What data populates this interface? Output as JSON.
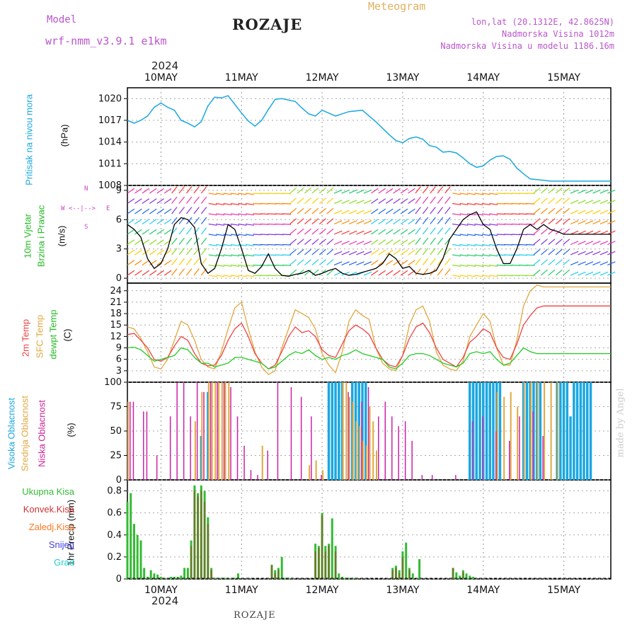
{
  "header": {
    "model_label": "Model",
    "model_name": "wrf-nmm_v3.9.1  e1km",
    "title": "ROZAJE",
    "meteogram": "Meteogram",
    "lonlat": "lon,lat (20.1312E, 42.8625N)",
    "altitude": "Nadmorska Visina 1012m",
    "model_altitude": "Nadmorska Visina u modelu 1186.16m",
    "year_top": "2024",
    "year_bottom": "2024",
    "footer": "ROZAJE",
    "watermark": "made by Angel"
  },
  "colors": {
    "pressure": "#1ba7e0",
    "temp2m": "#ee4444",
    "sfc": "#e0a840",
    "dewpt": "#22cc22",
    "high_cloud": "#1ba7e0",
    "mid_cloud": "#e0a840",
    "low_cloud": "#cc22aa",
    "precip_total": "#33bb33",
    "precip_conv": "#cc3333",
    "frz": "#ff7722",
    "snow": "#4444dd",
    "hail": "#22cccc",
    "wind_legend": "#cc44cc"
  },
  "panel_labels": {
    "pressure": "Pritisak na nivou mora",
    "pressure_unit": "(hPa)",
    "wind1": "10m Vjetar",
    "wind2": "Brzina i Pravac",
    "wind_unit": "(m/s)",
    "temp1": "2m Temp",
    "temp2": "SFC Temp",
    "temp3": "dewpt Temp",
    "temp_unit": "(C)",
    "cloud1": "Visoka Oblacnost",
    "cloud2": "Srednja Oblacnost",
    "cloud3": "Niska Oblacnost",
    "cloud_unit": "(%)",
    "precip_unit": "1hr Precip (mm)",
    "precip_legend": [
      "Ukupna Kisa",
      "Konvek.Kisa",
      "Zaledj.Kisa",
      "Snijeg",
      "Grad"
    ],
    "wind_compass": [
      "W",
      "<--|-->",
      "E",
      "N",
      "S"
    ]
  },
  "chart_data": {
    "type": "line",
    "days": [
      "10MAY",
      "11MAY",
      "12MAY",
      "13MAY",
      "14MAY",
      "15MAY"
    ],
    "x_hours_range": [
      0,
      144
    ],
    "pressure": {
      "ylabel": "(hPa)",
      "ylim": [
        1008,
        1021.5
      ],
      "ticks": [
        1008,
        1011,
        1014,
        1017,
        1020
      ],
      "hours": [
        0,
        2,
        4,
        6,
        8,
        10,
        12,
        14,
        16,
        18,
        20,
        22,
        24,
        26,
        28,
        30,
        32,
        34,
        36,
        38,
        40,
        42,
        44,
        46,
        48,
        50,
        52,
        54,
        56,
        58,
        60,
        62,
        64,
        66,
        68,
        70,
        72,
        74,
        76,
        78,
        80,
        82,
        84,
        86,
        88,
        90,
        92,
        94,
        96,
        98,
        100,
        102,
        104,
        106,
        108,
        110,
        112,
        114,
        116,
        118,
        120,
        122,
        124,
        126,
        128,
        130,
        132,
        134,
        136,
        138,
        140,
        142,
        144
      ],
      "values": [
        1017.0,
        1016.6,
        1017.0,
        1017.6,
        1018.8,
        1019.4,
        1018.8,
        1018.4,
        1017.0,
        1016.6,
        1016.1,
        1016.8,
        1019.0,
        1020.2,
        1020.1,
        1020.4,
        1019.2,
        1018.0,
        1016.9,
        1016.2,
        1017.0,
        1018.5,
        1019.9,
        1020.0,
        1019.8,
        1019.6,
        1018.7,
        1017.9,
        1017.6,
        1018.4,
        1018.0,
        1017.6,
        1017.9,
        1018.2,
        1018.3,
        1018.4,
        1017.6,
        1016.8,
        1015.9,
        1015.0,
        1014.2,
        1013.9,
        1014.5,
        1014.7,
        1014.4,
        1013.5,
        1013.3,
        1012.6,
        1012.7,
        1012.5,
        1011.8,
        1011.0,
        1010.5,
        1010.7,
        1011.5,
        1012.0,
        1012.1,
        1011.6,
        1010.4,
        1009.6,
        1008.9,
        1008.8,
        1008.7,
        1008.6,
        1008.6,
        1008.6,
        1008.6,
        1008.6,
        1008.6,
        1008.6,
        1008.6,
        1008.6,
        1008.6
      ]
    },
    "wind": {
      "ylabel": "(m/s)",
      "ylim": [
        -0.5,
        9.5
      ],
      "ticks": [
        0,
        3,
        6,
        9
      ],
      "hours": [
        0,
        2,
        4,
        6,
        8,
        10,
        12,
        14,
        16,
        18,
        20,
        22,
        24,
        26,
        28,
        30,
        32,
        34,
        36,
        38,
        40,
        42,
        44,
        46,
        48,
        50,
        52,
        54,
        56,
        58,
        60,
        62,
        64,
        66,
        68,
        70,
        72,
        74,
        76,
        78,
        80,
        82,
        84,
        86,
        88,
        90,
        92,
        94,
        96,
        98,
        100,
        102,
        104,
        106,
        108,
        110,
        112,
        114,
        116,
        118,
        120,
        122,
        124,
        126,
        128,
        130,
        132,
        134,
        136,
        138,
        140,
        142,
        144
      ],
      "speed": [
        5.5,
        5.0,
        4.2,
        2.0,
        1.0,
        1.5,
        3.0,
        5.5,
        6.2,
        6.0,
        5.2,
        1.5,
        0.5,
        1.0,
        3.0,
        5.5,
        5.0,
        3.0,
        0.8,
        0.5,
        1.2,
        2.5,
        1.0,
        0.3,
        0.2,
        0.4,
        0.5,
        0.8,
        0.3,
        0.5,
        0.8,
        1.0,
        0.5,
        0.3,
        0.4,
        0.6,
        0.8,
        1.0,
        1.5,
        2.5,
        2.0,
        1.0,
        1.2,
        0.5,
        0.4,
        0.5,
        0.8,
        2.0,
        4.0,
        5.0,
        6.0,
        6.5,
        6.8,
        5.5,
        5.0,
        3.0,
        1.5,
        1.5,
        3.0,
        5.0,
        5.5,
        5.0,
        5.5,
        5.0,
        4.8,
        4.5,
        4.5,
        4.5,
        4.5,
        4.5,
        4.5,
        4.5,
        4.5
      ]
    },
    "temperature": {
      "ylabel": "(C)",
      "ylim": [
        0,
        26
      ],
      "ticks": [
        3,
        6,
        9,
        12,
        15,
        18,
        21,
        24
      ],
      "hours": [
        0,
        2,
        4,
        6,
        8,
        10,
        12,
        14,
        16,
        18,
        20,
        22,
        24,
        26,
        28,
        30,
        32,
        34,
        36,
        38,
        40,
        42,
        44,
        46,
        48,
        50,
        52,
        54,
        56,
        58,
        60,
        62,
        64,
        66,
        68,
        70,
        72,
        74,
        76,
        78,
        80,
        82,
        84,
        86,
        88,
        90,
        92,
        94,
        96,
        98,
        100,
        102,
        104,
        106,
        108,
        110,
        112,
        114,
        116,
        118,
        120,
        122,
        124,
        126,
        128,
        130,
        132,
        134,
        136,
        138,
        140,
        142,
        144
      ],
      "t2m": [
        12.5,
        12.8,
        11.0,
        9.0,
        6.0,
        5.5,
        6.5,
        9.5,
        12.0,
        11.0,
        7.5,
        5.0,
        4.3,
        4.5,
        7.0,
        11.0,
        14.0,
        15.5,
        12.0,
        7.5,
        5.0,
        3.5,
        4.5,
        8.0,
        12.0,
        14.5,
        13.0,
        13.5,
        12.0,
        8.5,
        7.0,
        6.5,
        10.0,
        13.5,
        15.0,
        14.0,
        12.5,
        9.0,
        6.0,
        4.5,
        4.0,
        7.0,
        11.5,
        14.5,
        15.5,
        13.0,
        9.0,
        6.0,
        5.0,
        4.0,
        6.5,
        10.5,
        12.0,
        14.0,
        13.0,
        9.0,
        6.5,
        6.0,
        10.0,
        15.0,
        17.5,
        19.5,
        20.0,
        20.0,
        20.0,
        20.0,
        20.0,
        20.0,
        20.0,
        20.0,
        20.0,
        20.0,
        20.0
      ],
      "sfc": [
        14.5,
        14.0,
        11.5,
        8.0,
        4.0,
        3.5,
        6.0,
        11.0,
        16.0,
        15.0,
        11.0,
        6.0,
        4.0,
        3.5,
        8.0,
        14.0,
        19.5,
        21.0,
        14.0,
        8.0,
        4.0,
        2.0,
        3.0,
        9.0,
        14.0,
        19.0,
        18.0,
        17.0,
        14.0,
        7.5,
        4.5,
        2.5,
        8.0,
        16.0,
        19.0,
        17.5,
        16.5,
        9.0,
        5.0,
        3.5,
        3.0,
        7.0,
        15.0,
        19.0,
        20.0,
        16.0,
        8.0,
        4.5,
        3.5,
        3.0,
        5.5,
        12.0,
        15.0,
        18.0,
        16.0,
        9.0,
        4.5,
        4.5,
        11.0,
        20.0,
        24.0,
        25.5,
        25.0,
        25.0,
        25.0,
        25.0,
        25.0,
        25.0,
        25.0,
        25.0,
        25.0,
        25.0,
        25.0
      ],
      "dewpt": [
        9.0,
        9.2,
        8.5,
        7.0,
        5.5,
        6.0,
        6.5,
        7.0,
        9.0,
        8.5,
        6.5,
        5.0,
        5.0,
        4.0,
        4.5,
        5.0,
        6.5,
        6.5,
        6.0,
        5.5,
        5.0,
        3.5,
        4.0,
        5.5,
        7.0,
        8.0,
        7.5,
        8.5,
        7.0,
        6.0,
        6.5,
        6.0,
        7.0,
        7.5,
        8.5,
        7.5,
        7.0,
        6.5,
        6.0,
        4.0,
        3.5,
        5.0,
        7.0,
        7.5,
        7.5,
        7.0,
        6.0,
        5.0,
        4.5,
        4.0,
        5.0,
        7.5,
        8.0,
        7.5,
        8.0,
        6.0,
        4.5,
        5.0,
        7.0,
        9.0,
        8.0,
        7.5,
        7.5,
        7.5,
        7.5,
        7.5,
        7.5,
        7.5,
        7.5,
        7.5,
        7.5,
        7.5,
        7.5
      ]
    },
    "cloud": {
      "ylabel": "(%)",
      "ylim": [
        0,
        100
      ],
      "ticks": [
        0,
        25,
        50,
        75,
        100
      ],
      "high_hours": [
        22,
        24,
        60,
        61,
        62,
        63,
        64,
        67,
        68,
        69,
        70,
        71,
        102,
        103,
        104,
        105,
        106,
        107,
        108,
        109,
        110,
        111,
        118,
        119,
        120,
        121,
        122,
        123,
        128,
        129,
        130,
        131,
        132,
        133,
        134,
        135,
        136,
        137,
        138
      ],
      "high_values": [
        45,
        90,
        100,
        100,
        100,
        100,
        100,
        100,
        100,
        100,
        100,
        100,
        100,
        100,
        100,
        100,
        100,
        100,
        100,
        100,
        100,
        100,
        100,
        100,
        100,
        100,
        100,
        100,
        100,
        100,
        100,
        100,
        65,
        100,
        100,
        100,
        100,
        100,
        100
      ],
      "mid_hours": [
        0,
        20,
        22,
        24,
        25,
        26,
        27,
        28,
        29,
        30,
        40,
        54,
        56,
        58,
        64,
        65,
        66,
        67,
        68,
        69,
        70,
        71,
        72,
        73,
        74,
        110,
        112,
        114,
        116,
        118,
        120,
        122,
        124,
        126,
        128
      ],
      "mid_values": [
        80,
        60,
        90,
        100,
        100,
        100,
        100,
        100,
        100,
        100,
        35,
        15,
        20,
        10,
        100,
        100,
        85,
        80,
        60,
        55,
        40,
        35,
        75,
        60,
        30,
        90,
        85,
        90,
        75,
        100,
        100,
        100,
        100,
        100,
        100
      ],
      "low_hours": [
        1,
        2,
        5,
        6,
        9,
        13,
        15,
        17,
        19,
        21,
        23,
        25,
        27,
        29,
        31,
        33,
        35,
        37,
        39,
        42,
        45,
        49,
        52,
        55,
        58,
        66,
        70,
        72,
        75,
        77,
        79,
        81,
        83,
        85,
        88,
        91,
        98,
        103,
        106,
        110,
        114,
        117,
        121,
        124
      ],
      "low_values": [
        80,
        80,
        70,
        70,
        25,
        65,
        100,
        100,
        65,
        100,
        90,
        100,
        100,
        100,
        95,
        65,
        35,
        10,
        5,
        30,
        100,
        95,
        85,
        65,
        5,
        90,
        80,
        95,
        65,
        80,
        65,
        55,
        60,
        40,
        5,
        5,
        5,
        60,
        65,
        50,
        40,
        65,
        70,
        45
      ]
    },
    "precip": {
      "ylabel": "1hr Precip (mm)",
      "ylim": [
        0,
        0.9
      ],
      "ticks": [
        0,
        0.2,
        0.4,
        0.6,
        0.8
      ],
      "hours": [
        0,
        1,
        2,
        3,
        4,
        5,
        6,
        7,
        8,
        9,
        10,
        11,
        12,
        13,
        14,
        15,
        16,
        17,
        18,
        19,
        20,
        21,
        22,
        23,
        24,
        25,
        26,
        27,
        28,
        29,
        30,
        31,
        32,
        33,
        36,
        43,
        44,
        45,
        46,
        47,
        48,
        49,
        56,
        57,
        58,
        59,
        60,
        61,
        62,
        63,
        64,
        65,
        66,
        67,
        68,
        79,
        80,
        81,
        82,
        83,
        84,
        85,
        87,
        97,
        98,
        99,
        100,
        101,
        102,
        103
      ],
      "total": [
        0.7,
        0.78,
        0.5,
        0.4,
        0.35,
        0.1,
        0.02,
        0.08,
        0.05,
        0.04,
        0.02,
        0.01,
        0.01,
        0.02,
        0.02,
        0.02,
        0.03,
        0.1,
        0.1,
        0.35,
        0.85,
        0.78,
        0.85,
        0.8,
        0.56,
        0.1,
        0.01,
        0.01,
        0.01,
        0.01,
        0.01,
        0.01,
        0.01,
        0.05,
        0.01,
        0.13,
        0.08,
        0.1,
        0.2,
        0.01,
        0.01,
        0.01,
        0.32,
        0.3,
        0.6,
        0.3,
        0.32,
        0.55,
        0.3,
        0.05,
        0.02,
        0.01,
        0.01,
        0.01,
        0.01,
        0.1,
        0.12,
        0.08,
        0.25,
        0.33,
        0.1,
        0.05,
        0.18,
        0.1,
        0.06,
        0.03,
        0.08,
        0.05,
        0.03,
        0.02
      ],
      "conv": [
        0.0,
        0.0,
        0.0,
        0.0,
        0.0,
        0.0,
        0.0,
        0.0,
        0.0,
        0.0,
        0.0,
        0.0,
        0.0,
        0.0,
        0.0,
        0.0,
        0.0,
        0.0,
        0.0,
        0.3,
        0.8,
        0.75,
        0.8,
        0.7,
        0.5,
        0.08,
        0.0,
        0.0,
        0.0,
        0.0,
        0.0,
        0.0,
        0.0,
        0.0,
        0.0,
        0.12,
        0.05,
        0.08,
        0.0,
        0.0,
        0.0,
        0.0,
        0.25,
        0.28,
        0.58,
        0.25,
        0.3,
        0.0,
        0.25,
        0.0,
        0.0,
        0.0,
        0.0,
        0.0,
        0.0,
        0.08,
        0.1,
        0.05,
        0.2,
        0.0,
        0.08,
        0.0,
        0.0,
        0.1,
        0.0,
        0.0,
        0.06,
        0.0,
        0.0,
        0.0
      ]
    }
  }
}
